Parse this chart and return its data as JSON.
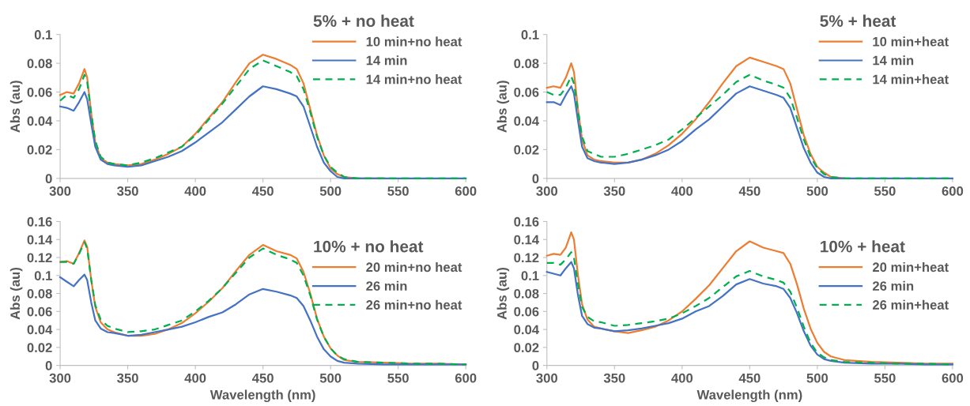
{
  "chart_data": [
    {
      "type": "line",
      "legend_title": "5% + no heat",
      "ylabel": "Abs (au)",
      "legend": "top right",
      "grid": false,
      "xlim": [
        300,
        600
      ],
      "xticks": [
        300,
        350,
        400,
        450,
        500,
        550,
        600
      ],
      "ylim": [
        0,
        0.1
      ],
      "yticks": [
        0,
        0.02,
        0.04,
        0.06,
        0.08,
        0.1
      ],
      "x": [
        300,
        305,
        310,
        314,
        318,
        320,
        323,
        326,
        330,
        335,
        340,
        350,
        360,
        370,
        380,
        390,
        400,
        410,
        420,
        430,
        440,
        450,
        460,
        470,
        475,
        480,
        485,
        490,
        495,
        500,
        505,
        510,
        520,
        540,
        560,
        580,
        600
      ],
      "series": [
        {
          "name": "10 min+no heat",
          "color": "#ed7d31",
          "line_style": "solid",
          "values": [
            0.058,
            0.06,
            0.059,
            0.066,
            0.076,
            0.07,
            0.045,
            0.025,
            0.014,
            0.011,
            0.01,
            0.009,
            0.01,
            0.013,
            0.017,
            0.022,
            0.031,
            0.042,
            0.053,
            0.067,
            0.08,
            0.086,
            0.083,
            0.079,
            0.076,
            0.066,
            0.048,
            0.03,
            0.016,
            0.007,
            0.003,
            0.001,
            0,
            0,
            null,
            null,
            null
          ]
        },
        {
          "name": "14 min",
          "color": "#4472c4",
          "line_style": "solid",
          "values": [
            0.05,
            0.049,
            0.047,
            0.053,
            0.06,
            0.055,
            0.038,
            0.022,
            0.013,
            0.01,
            0.009,
            0.008,
            0.009,
            0.012,
            0.015,
            0.019,
            0.025,
            0.032,
            0.039,
            0.048,
            0.057,
            0.064,
            0.062,
            0.059,
            0.057,
            0.05,
            0.036,
            0.022,
            0.011,
            0.005,
            0.001,
            0,
            0,
            0,
            0,
            0,
            0
          ]
        },
        {
          "name": "14 min+no heat",
          "color": "#00b050",
          "line_style": "dashed",
          "values": [
            0.054,
            0.058,
            0.056,
            0.062,
            0.072,
            0.067,
            0.045,
            0.026,
            0.015,
            0.011,
            0.01,
            0.009,
            0.011,
            0.014,
            0.018,
            0.022,
            0.03,
            0.041,
            0.052,
            0.064,
            0.076,
            0.082,
            0.078,
            0.074,
            0.071,
            0.062,
            0.046,
            0.029,
            0.016,
            0.008,
            0.004,
            0.001,
            0,
            0,
            0,
            0,
            0
          ]
        }
      ]
    },
    {
      "type": "line",
      "legend_title": "5% + heat",
      "ylabel": "Abs (au)",
      "legend": "top right",
      "grid": false,
      "xlim": [
        300,
        600
      ],
      "xticks": [
        300,
        350,
        400,
        450,
        500,
        550,
        600
      ],
      "ylim": [
        0,
        0.1
      ],
      "yticks": [
        0,
        0.02,
        0.04,
        0.06,
        0.08,
        0.1
      ],
      "x": [
        300,
        305,
        310,
        314,
        318,
        320,
        323,
        326,
        330,
        335,
        340,
        350,
        360,
        370,
        380,
        390,
        400,
        410,
        420,
        430,
        440,
        450,
        460,
        470,
        475,
        480,
        485,
        490,
        495,
        500,
        505,
        510,
        520,
        540,
        560,
        580,
        600
      ],
      "series": [
        {
          "name": "10 min+heat",
          "color": "#ed7d31",
          "line_style": "solid",
          "values": [
            0.063,
            0.064,
            0.063,
            0.07,
            0.08,
            0.074,
            0.048,
            0.027,
            0.016,
            0.013,
            0.012,
            0.011,
            0.011,
            0.013,
            0.017,
            0.023,
            0.031,
            0.041,
            0.053,
            0.066,
            0.078,
            0.084,
            0.081,
            0.078,
            0.076,
            0.066,
            0.048,
            0.03,
            0.017,
            0.008,
            0.004,
            0.001,
            0,
            null,
            null,
            null,
            null
          ]
        },
        {
          "name": "14 min",
          "color": "#4472c4",
          "line_style": "solid",
          "values": [
            0.053,
            0.053,
            0.051,
            0.058,
            0.064,
            0.059,
            0.04,
            0.022,
            0.014,
            0.012,
            0.011,
            0.01,
            0.011,
            0.013,
            0.016,
            0.02,
            0.026,
            0.034,
            0.041,
            0.05,
            0.059,
            0.064,
            0.061,
            0.058,
            0.056,
            0.049,
            0.035,
            0.021,
            0.011,
            0.004,
            0.001,
            0,
            0,
            0,
            0,
            0,
            0
          ]
        },
        {
          "name": "14 min+heat",
          "color": "#00b050",
          "line_style": "dashed",
          "values": [
            0.06,
            0.058,
            0.058,
            0.063,
            0.071,
            0.066,
            0.047,
            0.029,
            0.019,
            0.017,
            0.015,
            0.015,
            0.017,
            0.02,
            0.023,
            0.027,
            0.034,
            0.042,
            0.05,
            0.058,
            0.067,
            0.072,
            0.068,
            0.065,
            0.063,
            0.056,
            0.042,
            0.027,
            0.015,
            0.007,
            0.003,
            0.001,
            0,
            0,
            0,
            0,
            0
          ]
        }
      ]
    },
    {
      "type": "line",
      "legend_title": "10% + no heat",
      "xlabel": "Wavelength (nm)",
      "ylabel": "Abs (au)",
      "legend": "right",
      "grid": false,
      "xlim": [
        300,
        600
      ],
      "xticks": [
        300,
        350,
        400,
        450,
        500,
        550,
        600
      ],
      "ylim": [
        0,
        0.16
      ],
      "yticks": [
        0,
        0.02,
        0.04,
        0.06,
        0.08,
        0.1,
        0.12,
        0.14,
        0.16
      ],
      "x": [
        300,
        305,
        310,
        314,
        318,
        320,
        323,
        326,
        330,
        335,
        340,
        350,
        360,
        370,
        380,
        390,
        400,
        410,
        420,
        430,
        440,
        450,
        460,
        470,
        475,
        480,
        485,
        490,
        495,
        500,
        505,
        510,
        520,
        540,
        560,
        580,
        600
      ],
      "series": [
        {
          "name": "20 min+no heat",
          "color": "#ed7d31",
          "line_style": "solid",
          "values": [
            0.115,
            0.116,
            0.113,
            0.125,
            0.139,
            0.132,
            0.095,
            0.065,
            0.048,
            0.04,
            0.037,
            0.033,
            0.033,
            0.035,
            0.04,
            0.047,
            0.058,
            0.071,
            0.086,
            0.105,
            0.123,
            0.134,
            0.127,
            0.123,
            0.119,
            0.104,
            0.08,
            0.052,
            0.032,
            0.019,
            0.011,
            0.006,
            0.004,
            0.003,
            0.002,
            0.002,
            0.001
          ]
        },
        {
          "name": "26 min",
          "color": "#4472c4",
          "line_style": "solid",
          "values": [
            0.098,
            0.093,
            0.088,
            0.095,
            0.101,
            0.095,
            0.07,
            0.05,
            0.041,
            0.037,
            0.036,
            0.033,
            0.034,
            0.037,
            0.04,
            0.043,
            0.048,
            0.054,
            0.059,
            0.068,
            0.079,
            0.085,
            0.082,
            0.078,
            0.075,
            0.066,
            0.05,
            0.032,
            0.018,
            0.01,
            0.005,
            0.003,
            0.002,
            0.001,
            0.001,
            0.001,
            0.001
          ]
        },
        {
          "name": "26 min+no heat",
          "color": "#00b050",
          "line_style": "dashed",
          "values": [
            0.115,
            0.115,
            0.113,
            0.124,
            0.137,
            0.13,
            0.095,
            0.067,
            0.051,
            0.044,
            0.041,
            0.037,
            0.038,
            0.04,
            0.045,
            0.05,
            0.06,
            0.072,
            0.086,
            0.103,
            0.12,
            0.13,
            0.123,
            0.118,
            0.114,
            0.1,
            0.078,
            0.051,
            0.032,
            0.019,
            0.011,
            0.007,
            0.004,
            0.003,
            0.002,
            0.002,
            0.001
          ]
        }
      ]
    },
    {
      "type": "line",
      "legend_title": "10% + heat",
      "xlabel": "Wavelength (nm)",
      "ylabel": "Abs (au)",
      "legend": "right",
      "grid": false,
      "xlim": [
        300,
        600
      ],
      "xticks": [
        300,
        350,
        400,
        450,
        500,
        550,
        600
      ],
      "ylim": [
        0,
        0.16
      ],
      "yticks": [
        0,
        0.02,
        0.04,
        0.06,
        0.08,
        0.1,
        0.12,
        0.14,
        0.16
      ],
      "x": [
        300,
        305,
        310,
        314,
        318,
        320,
        323,
        326,
        330,
        335,
        340,
        350,
        360,
        370,
        380,
        390,
        400,
        410,
        420,
        430,
        440,
        450,
        460,
        470,
        475,
        480,
        485,
        490,
        495,
        500,
        505,
        510,
        520,
        540,
        560,
        580,
        600
      ],
      "series": [
        {
          "name": "20 min+heat",
          "color": "#ed7d31",
          "line_style": "solid",
          "values": [
            0.122,
            0.124,
            0.123,
            0.131,
            0.148,
            0.14,
            0.1,
            0.068,
            0.051,
            0.043,
            0.041,
            0.038,
            0.036,
            0.039,
            0.043,
            0.05,
            0.06,
            0.074,
            0.089,
            0.108,
            0.127,
            0.138,
            0.131,
            0.127,
            0.125,
            0.113,
            0.09,
            0.063,
            0.041,
            0.025,
            0.015,
            0.01,
            0.006,
            0.004,
            0.003,
            0.002,
            0.002
          ]
        },
        {
          "name": "26 min",
          "color": "#4472c4",
          "line_style": "solid",
          "values": [
            0.104,
            0.102,
            0.1,
            0.108,
            0.115,
            0.108,
            0.078,
            0.055,
            0.046,
            0.042,
            0.041,
            0.038,
            0.039,
            0.041,
            0.044,
            0.047,
            0.052,
            0.06,
            0.066,
            0.077,
            0.09,
            0.096,
            0.091,
            0.088,
            0.085,
            0.075,
            0.058,
            0.038,
            0.022,
            0.012,
            0.007,
            0.005,
            0.003,
            0.002,
            0.002,
            0.001,
            0.001
          ]
        },
        {
          "name": "26 min+heat",
          "color": "#00b050",
          "line_style": "dashed",
          "values": [
            0.114,
            0.114,
            0.112,
            0.118,
            0.126,
            0.12,
            0.09,
            0.065,
            0.054,
            0.049,
            0.048,
            0.044,
            0.045,
            0.047,
            0.049,
            0.052,
            0.058,
            0.066,
            0.075,
            0.087,
            0.099,
            0.105,
            0.099,
            0.095,
            0.092,
            0.082,
            0.064,
            0.043,
            0.025,
            0.014,
            0.009,
            0.006,
            0.004,
            0.003,
            0.002,
            0.002,
            0.001
          ]
        }
      ]
    }
  ]
}
